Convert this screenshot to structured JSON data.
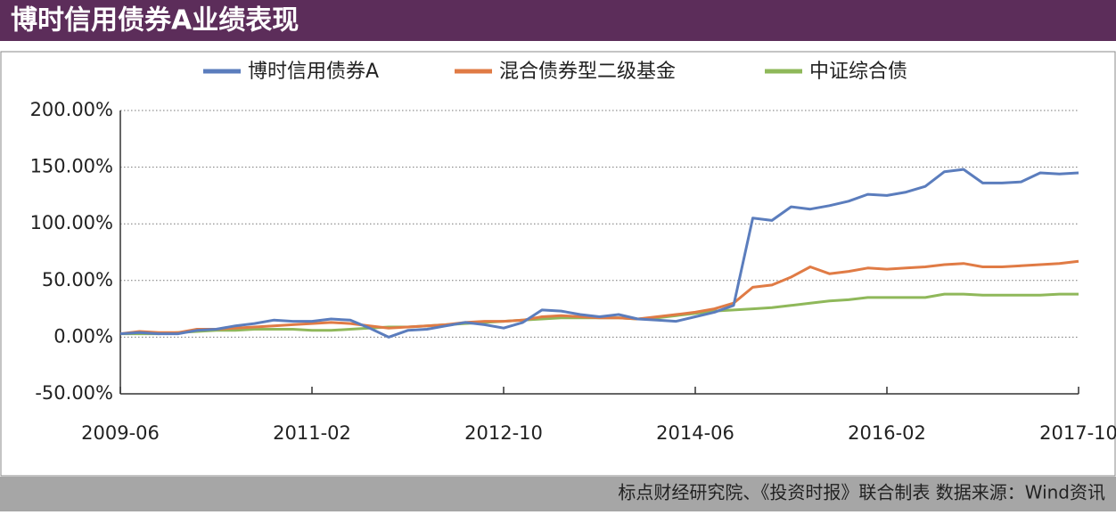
{
  "chart_data": {
    "type": "line",
    "title": "博时信用债券A业绩表现",
    "source": "标点财经研究院、《投资时报》联合制表   数据来源：Wind资讯",
    "categories": [
      "2009-06",
      null,
      null,
      null,
      null,
      null,
      null,
      null,
      null,
      null,
      "2011-02",
      null,
      null,
      null,
      null,
      null,
      null,
      null,
      null,
      null,
      "2012-10",
      null,
      null,
      null,
      null,
      null,
      null,
      null,
      null,
      null,
      "2014-06",
      null,
      null,
      null,
      null,
      null,
      null,
      null,
      null,
      null,
      "2016-02",
      null,
      null,
      null,
      null,
      null,
      null,
      null,
      null,
      null,
      "2017-10"
    ],
    "series": [
      {
        "name": "博时信用债券A",
        "color": "#5b7dbd",
        "values": [
          3,
          4,
          3,
          3,
          6,
          7,
          10,
          12,
          15,
          14,
          14,
          16,
          15,
          8,
          0,
          6,
          7,
          10,
          13,
          11,
          8,
          13,
          24,
          23,
          20,
          18,
          20,
          16,
          15,
          14,
          18,
          22,
          28,
          105,
          103,
          115,
          113,
          116,
          120,
          126,
          125,
          128,
          133,
          146,
          148,
          136,
          136,
          137,
          145,
          144,
          145
        ]
      },
      {
        "name": "混合债券型二级基金",
        "color": "#e07b45",
        "values": [
          3,
          5,
          4,
          4,
          7,
          7,
          8,
          9,
          10,
          11,
          12,
          13,
          12,
          10,
          8,
          9,
          10,
          11,
          13,
          14,
          14,
          15,
          18,
          19,
          18,
          17,
          17,
          16,
          18,
          20,
          22,
          25,
          30,
          44,
          46,
          53,
          62,
          56,
          58,
          61,
          60,
          61,
          62,
          64,
          65,
          62,
          62,
          63,
          64,
          65,
          67
        ]
      },
      {
        "name": "中证综合债",
        "color": "#8fb85a",
        "values": [
          3,
          3,
          3,
          4,
          5,
          6,
          6,
          7,
          7,
          7,
          6,
          6,
          7,
          8,
          9,
          9,
          10,
          11,
          12,
          13,
          14,
          15,
          16,
          17,
          17,
          17,
          17,
          16,
          17,
          19,
          21,
          23,
          24,
          25,
          26,
          28,
          30,
          32,
          33,
          35,
          35,
          35,
          35,
          38,
          38,
          37,
          37,
          37,
          37,
          38,
          38
        ]
      }
    ],
    "ylim": [
      -50,
      200
    ],
    "yticks": [
      {
        "value": -50,
        "label": "-50.00%"
      },
      {
        "value": 0,
        "label": "0.00%"
      },
      {
        "value": 50,
        "label": "50.00%"
      },
      {
        "value": 100,
        "label": "100.00%"
      },
      {
        "value": 150,
        "label": "150.00%"
      },
      {
        "value": 200,
        "label": "200.00%"
      }
    ],
    "grid": true
  }
}
